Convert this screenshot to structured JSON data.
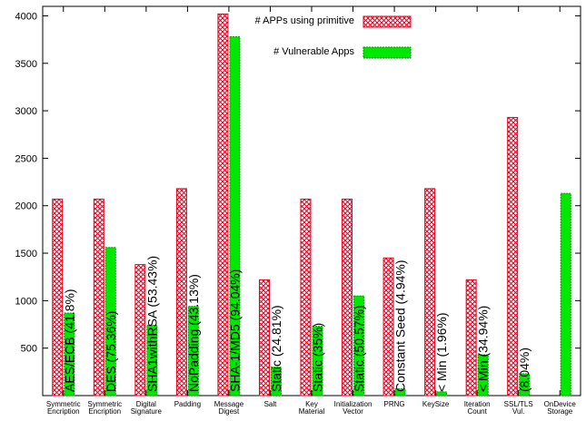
{
  "chart_data": {
    "type": "bar",
    "title": "",
    "xlabel": "",
    "ylabel": "",
    "ylim": [
      0,
      4100
    ],
    "yticks": [
      500,
      1000,
      1500,
      2000,
      2500,
      3000,
      3500,
      4000
    ],
    "grid": false,
    "legend_position": "top-right",
    "categories": [
      [
        "Symmetric",
        "Encription"
      ],
      [
        "Symmetric",
        "Encription"
      ],
      [
        "Digital",
        "Signature"
      ],
      [
        "Padding"
      ],
      [
        "Message",
        "Digest"
      ],
      [
        "Salt"
      ],
      [
        "Key",
        "Material"
      ],
      [
        "Initialization",
        "Vector"
      ],
      [
        "PRNG"
      ],
      [
        "KeySize"
      ],
      [
        "Iteration",
        "Count"
      ],
      [
        "SSL/TLS",
        "Vul."
      ],
      [
        "OnDevice",
        "Storage"
      ]
    ],
    "series": [
      {
        "name": "# APPs using primitive",
        "color": "#e8001c",
        "fill": "crosshatch-red",
        "values": [
          2070,
          2070,
          1380,
          2180,
          4020,
          1220,
          2070,
          2070,
          1450,
          2180,
          1220,
          2930,
          0
        ]
      },
      {
        "name": "# Vulnerable Apps",
        "color": "#00e800",
        "fill": "solid-green",
        "values": [
          870,
          1560,
          740,
          940,
          3780,
          300,
          730,
          1050,
          70,
          40,
          430,
          230,
          2130
        ]
      }
    ],
    "annotations": [
      "AES/ECB (41.8%)",
      "DES (75.36%)",
      "SHA1withRSA (53.43%)",
      "NoPadding (43.13%)",
      "SHA-1/MD5 (94.04%)",
      "Static (24.81%)",
      "Static (35%)",
      "Static (50.57%)",
      "Constant Seed (4.94%)",
      "< Min (1.96%)",
      "< Min (34.94%)",
      "(8.04%)",
      ""
    ]
  }
}
